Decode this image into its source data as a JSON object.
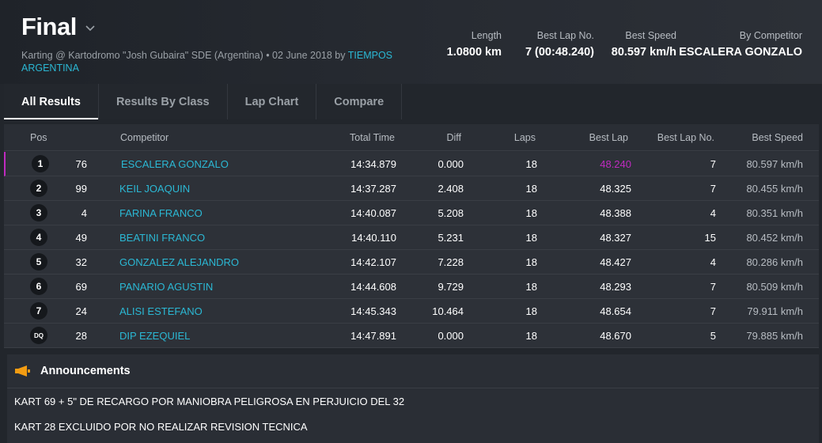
{
  "header": {
    "title": "Final",
    "subtitle_prefix": "Karting @ Kartodromo \"Josh Gubaira\" SDE (Argentina) • 02 June 2018 by",
    "subtitle_link": "TIEMPOS ARGENTINA",
    "stats": [
      {
        "label": "Length",
        "value": "1.0800 km"
      },
      {
        "label": "Best Lap No.",
        "value": "7 (00:48.240)"
      },
      {
        "label": "Best Speed",
        "value": "80.597 km/h"
      },
      {
        "label": "By Competitor",
        "value": "ESCALERA GONZALO"
      }
    ]
  },
  "tabs": [
    {
      "label": "All Results",
      "active": true
    },
    {
      "label": "Results By Class",
      "active": false
    },
    {
      "label": "Lap Chart",
      "active": false
    },
    {
      "label": "Compare",
      "active": false
    }
  ],
  "table": {
    "columns": {
      "pos": "Pos",
      "competitor": "Competitor",
      "total_time": "Total Time",
      "diff": "Diff",
      "laps": "Laps",
      "best_lap": "Best Lap",
      "best_lap_no": "Best Lap No.",
      "best_speed": "Best Speed"
    },
    "rows": [
      {
        "pos": "1",
        "kart": "76",
        "name": "ESCALERA GONZALO",
        "total": "14:34.879",
        "diff": "0.000",
        "laps": "18",
        "best_lap": "48.240",
        "best_lap_no": "7",
        "speed": "80.597 km/h"
      },
      {
        "pos": "2",
        "kart": "99",
        "name": "KEIL JOAQUIN",
        "total": "14:37.287",
        "diff": "2.408",
        "laps": "18",
        "best_lap": "48.325",
        "best_lap_no": "7",
        "speed": "80.455 km/h"
      },
      {
        "pos": "3",
        "kart": "4",
        "name": "FARINA FRANCO",
        "total": "14:40.087",
        "diff": "5.208",
        "laps": "18",
        "best_lap": "48.388",
        "best_lap_no": "4",
        "speed": "80.351 km/h"
      },
      {
        "pos": "4",
        "kart": "49",
        "name": "BEATINI FRANCO",
        "total": "14:40.110",
        "diff": "5.231",
        "laps": "18",
        "best_lap": "48.327",
        "best_lap_no": "15",
        "speed": "80.452 km/h"
      },
      {
        "pos": "5",
        "kart": "32",
        "name": "GONZALEZ ALEJANDRO",
        "total": "14:42.107",
        "diff": "7.228",
        "laps": "18",
        "best_lap": "48.427",
        "best_lap_no": "4",
        "speed": "80.286 km/h"
      },
      {
        "pos": "6",
        "kart": "69",
        "name": "PANARIO AGUSTIN",
        "total": "14:44.608",
        "diff": "9.729",
        "laps": "18",
        "best_lap": "48.293",
        "best_lap_no": "7",
        "speed": "80.509 km/h"
      },
      {
        "pos": "7",
        "kart": "24",
        "name": "ALISI ESTEFANO",
        "total": "14:45.343",
        "diff": "10.464",
        "laps": "18",
        "best_lap": "48.654",
        "best_lap_no": "7",
        "speed": "79.911 km/h"
      },
      {
        "pos": "DQ",
        "kart": "28",
        "name": "DIP EZEQUIEL",
        "total": "14:47.891",
        "diff": "0.000",
        "laps": "18",
        "best_lap": "48.670",
        "best_lap_no": "5",
        "speed": "79.885 km/h"
      }
    ]
  },
  "announcements": {
    "title": "Announcements",
    "items": [
      "KART 69 + 5\" DE RECARGO POR MANIOBRA PELIGROSA EN PERJUICIO DEL 32",
      "KART 28 EXCLUIDO POR NO REALIZAR REVISION TECNICA"
    ]
  },
  "colors": {
    "link": "#2bb8d4",
    "best_lap_highlight": "#c02bc0",
    "announcement_icon": "#f39c12"
  },
  "icons": {
    "title_dropdown": "chevron-down-icon",
    "announcements": "megaphone-icon"
  }
}
